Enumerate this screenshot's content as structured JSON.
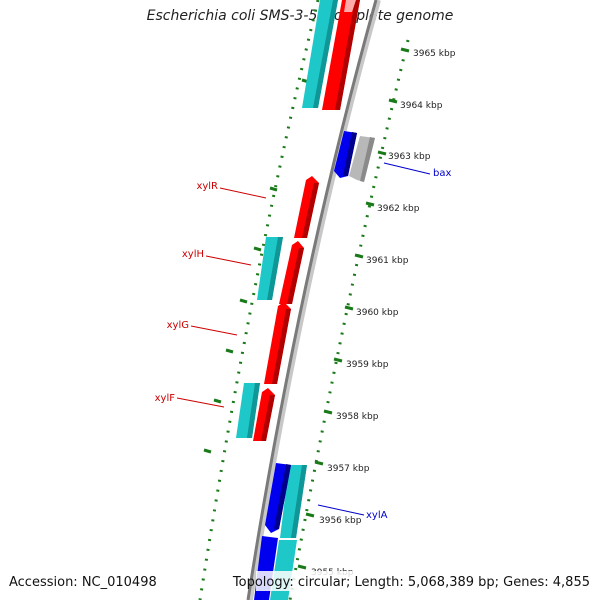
{
  "title": "Escherichia coli SMS-3-5, complete genome",
  "footer": {
    "accession": "Accession: NC_010498",
    "topology": "Topology: circular; Length: 5,068,389 bp; Genes: 4,855"
  },
  "scale_labels": [
    "3965 kbp",
    "3964 kbp",
    "3963 kbp",
    "3962 kbp",
    "3961 kbp",
    "3960 kbp",
    "3959 kbp",
    "3958 kbp",
    "3957 kbp",
    "3956 kbp",
    "3955 kbp"
  ],
  "gene_labels": [
    "xylR",
    "xylH",
    "xylG",
    "xylF",
    "bax",
    "xylA"
  ],
  "colors": {
    "forward_gene": "#ff0000",
    "reverse_gene": "#0000ee",
    "rna_cyan": "#1ec8c8",
    "other_gene": "#b8b8b8",
    "backbone": "#808080",
    "tick_green": "#1a7a1a",
    "label_red": "#cc0000",
    "label_blue": "#0000cc"
  }
}
